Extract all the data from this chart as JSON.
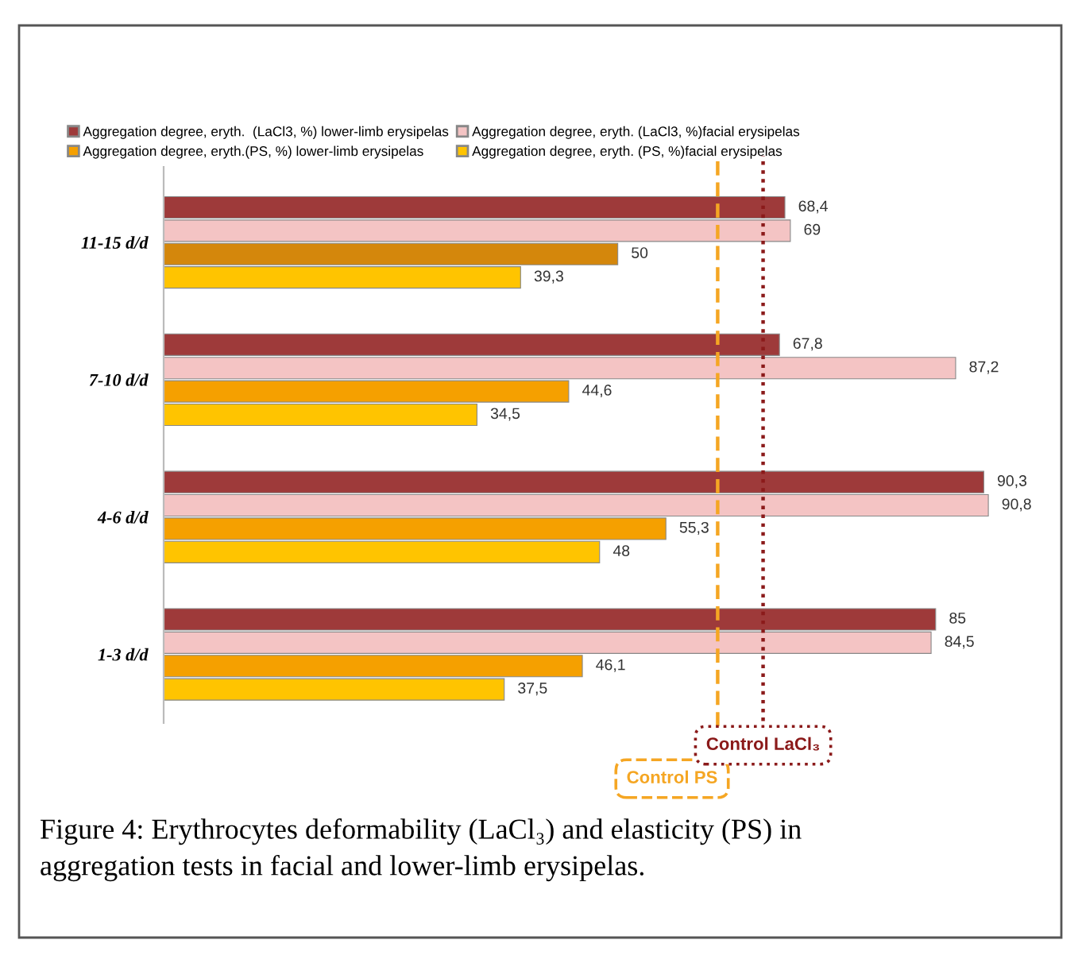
{
  "chart_data": {
    "type": "bar",
    "orientation": "horizontal",
    "categories": [
      "11-15 d/d",
      "7-10 d/d",
      "4-6 d/d",
      "1-3 d/d"
    ],
    "series": [
      {
        "name": "Aggregation degree, eryth.  (LaCl3, %) lower-limb erysipelas",
        "color": "#9e3a3a",
        "values": [
          68.4,
          67.8,
          90.3,
          85
        ],
        "value_labels": [
          "68,4",
          "67,8",
          "90,3",
          "85"
        ]
      },
      {
        "name": "Aggregation degree, eryth. (LaCl3, %)facial erysipelas",
        "color": "#f4c4c4",
        "values": [
          69,
          87.2,
          90.8,
          84.5
        ],
        "value_labels": [
          "69",
          "87,2",
          "90,8",
          "84,5"
        ]
      },
      {
        "name": "Aggregation degree, eryth.(PS, %) lower-limb erysipelas",
        "color": "#f5a000",
        "colors": [
          "#d4870c",
          "#f5a000",
          "#f5a000",
          "#f5a000"
        ],
        "values": [
          50,
          44.6,
          55.3,
          46.1
        ],
        "value_labels": [
          "50",
          "44,6",
          "55,3",
          "46,1"
        ]
      },
      {
        "name": "Aggregation degree, eryth. (PS, %)facial erysipelas",
        "color": "#ffc400",
        "values": [
          39.3,
          34.5,
          48,
          37.5
        ],
        "value_labels": [
          "39,3",
          "34,5",
          "48",
          "37,5"
        ]
      }
    ],
    "tick_labels": "y",
    "grid": false,
    "legend": "top",
    "ref_lines": [
      {
        "axis": "x",
        "value": 61,
        "label": "Control PS",
        "color": "#f5a623",
        "line_style": "dashed"
      },
      {
        "axis": "x",
        "value": 66,
        "label": "Control LaCl₃",
        "color": "#8b1a1a",
        "line_style": "dotted"
      }
    ],
    "annotations": [
      "Figure 4: Erythrocytes deformability (LaCl₃) and elasticity (PS) in\naggregation tests in facial and lower-limb erysipelas."
    ]
  }
}
